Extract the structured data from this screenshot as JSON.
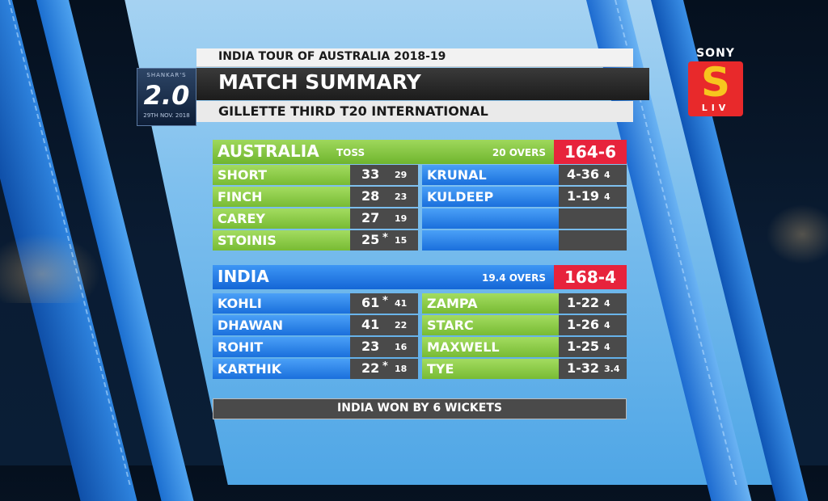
{
  "header": {
    "tour": "INDIA TOUR OF AUSTRALIA 2018-19",
    "title": "MATCH SUMMARY",
    "subtitle": "GILLETTE THIRD T20 INTERNATIONAL"
  },
  "sponsor": {
    "top": "SHANKAR'S",
    "main": "2.0",
    "date": "29TH NOV. 2018"
  },
  "broadcaster": {
    "name": "SONY",
    "logo_letter": "S",
    "sub": "LIV",
    "colors": {
      "red": "#e8292b",
      "yellow": "#f7c51e"
    }
  },
  "australia": {
    "team": "AUSTRALIA",
    "toss": "TOSS",
    "overs": "20 OVERS",
    "score": "164-6",
    "batting": [
      {
        "name": "SHORT",
        "runs": "33",
        "not_out": "",
        "balls": "29"
      },
      {
        "name": "FINCH",
        "runs": "28",
        "not_out": "",
        "balls": "23"
      },
      {
        "name": "CAREY",
        "runs": "27",
        "not_out": "",
        "balls": "19"
      },
      {
        "name": "STOINIS",
        "runs": "25",
        "not_out": "*",
        "balls": "15"
      }
    ],
    "bowling": [
      {
        "name": "KRUNAL",
        "figures": "4-36",
        "overs": "4"
      },
      {
        "name": "KULDEEP",
        "figures": "1-19",
        "overs": "4"
      },
      {
        "name": "",
        "figures": "",
        "overs": ""
      },
      {
        "name": "",
        "figures": "",
        "overs": ""
      }
    ]
  },
  "india": {
    "team": "INDIA",
    "overs": "19.4 OVERS",
    "score": "168-4",
    "batting": [
      {
        "name": "KOHLI",
        "runs": "61",
        "not_out": "*",
        "balls": "41"
      },
      {
        "name": "DHAWAN",
        "runs": "41",
        "not_out": "",
        "balls": "22"
      },
      {
        "name": "ROHIT",
        "runs": "23",
        "not_out": "",
        "balls": "16"
      },
      {
        "name": "KARTHIK",
        "runs": "22",
        "not_out": "*",
        "balls": "18"
      }
    ],
    "bowling": [
      {
        "name": "ZAMPA",
        "figures": "1-22",
        "overs": "4"
      },
      {
        "name": "STARC",
        "figures": "1-26",
        "overs": "4"
      },
      {
        "name": "MAXWELL",
        "figures": "1-25",
        "overs": "4"
      },
      {
        "name": "TYE",
        "figures": "1-32",
        "overs": "3.4"
      }
    ]
  },
  "result": "INDIA WON BY 6 WICKETS"
}
